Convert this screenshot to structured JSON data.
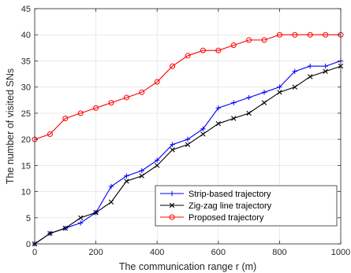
{
  "chart_data": {
    "type": "line",
    "xlabel": "The communication range r (m)",
    "ylabel": "The number of visited SNs",
    "xlim": [
      0,
      1000
    ],
    "ylim": [
      0,
      45
    ],
    "x_ticks": [
      0,
      200,
      400,
      600,
      800,
      1000
    ],
    "y_ticks": [
      0,
      5,
      10,
      15,
      20,
      25,
      30,
      35,
      40,
      45
    ],
    "grid": true,
    "legend_position": "bottom-right",
    "x": [
      0,
      50,
      100,
      150,
      200,
      250,
      300,
      350,
      400,
      450,
      500,
      550,
      600,
      650,
      700,
      750,
      800,
      850,
      900,
      950,
      1000
    ],
    "series": [
      {
        "name": "Strip-based trajectory",
        "color": "#0000ff",
        "marker": "plus",
        "values": [
          0,
          2,
          3,
          4,
          6,
          11,
          13,
          14,
          16,
          19,
          20,
          22,
          26,
          27,
          28,
          29,
          30,
          33,
          34,
          34,
          35
        ]
      },
      {
        "name": "Zig-zag line trajectory",
        "color": "#000000",
        "marker": "x",
        "values": [
          0,
          2,
          3,
          5,
          6,
          8,
          12,
          13,
          15,
          18,
          19,
          21,
          23,
          24,
          25,
          27,
          29,
          30,
          32,
          33,
          34
        ]
      },
      {
        "name": "Proposed trajectory",
        "color": "#ff0000",
        "marker": "circle",
        "values": [
          20,
          21,
          24,
          25,
          26,
          27,
          28,
          29,
          31,
          34,
          36,
          37,
          37,
          38,
          39,
          39,
          40,
          40,
          40,
          40,
          40
        ]
      }
    ]
  }
}
